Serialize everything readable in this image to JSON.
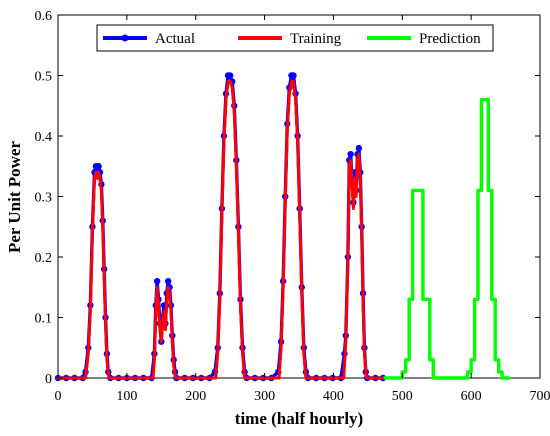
{
  "chart_data": {
    "type": "line",
    "title": "",
    "xlabel": "time (half hourly)",
    "ylabel": "Per Unit Power",
    "xlim": [
      0,
      700
    ],
    "ylim": [
      0,
      0.6
    ],
    "xticks": [
      "0",
      "100",
      "200",
      "300",
      "400",
      "500",
      "600",
      "700"
    ],
    "yticks": [
      "0",
      "0.1",
      "0.2",
      "0.3",
      "0.4",
      "0.5",
      "0.6"
    ],
    "grid": false,
    "legend": {
      "placement": "top",
      "orientation": "horizontal"
    },
    "series": [
      {
        "name": "Actual",
        "color": "#0000ff",
        "marker": "circle",
        "points": [
          [
            0,
            0
          ],
          [
            12,
            0
          ],
          [
            24,
            0
          ],
          [
            36,
            0
          ],
          [
            40,
            0.01
          ],
          [
            44,
            0.05
          ],
          [
            47,
            0.12
          ],
          [
            50,
            0.25
          ],
          [
            53,
            0.34
          ],
          [
            55,
            0.35
          ],
          [
            57,
            0.34
          ],
          [
            59,
            0.35
          ],
          [
            61,
            0.34
          ],
          [
            63,
            0.32
          ],
          [
            65,
            0.26
          ],
          [
            67,
            0.18
          ],
          [
            69,
            0.1
          ],
          [
            71,
            0.04
          ],
          [
            73,
            0.01
          ],
          [
            76,
            0
          ],
          [
            88,
            0
          ],
          [
            100,
            0
          ],
          [
            112,
            0
          ],
          [
            124,
            0
          ],
          [
            136,
            0
          ],
          [
            140,
            0.04
          ],
          [
            142,
            0.12
          ],
          [
            144,
            0.16
          ],
          [
            146,
            0.13
          ],
          [
            148,
            0.09
          ],
          [
            150,
            0.06
          ],
          [
            152,
            0.1
          ],
          [
            154,
            0.12
          ],
          [
            156,
            0.09
          ],
          [
            158,
            0.14
          ],
          [
            160,
            0.16
          ],
          [
            162,
            0.15
          ],
          [
            164,
            0.12
          ],
          [
            166,
            0.07
          ],
          [
            168,
            0.03
          ],
          [
            170,
            0.01
          ],
          [
            172,
            0
          ],
          [
            184,
            0
          ],
          [
            196,
            0
          ],
          [
            208,
            0
          ],
          [
            220,
            0
          ],
          [
            228,
            0.01
          ],
          [
            232,
            0.05
          ],
          [
            235,
            0.14
          ],
          [
            238,
            0.28
          ],
          [
            241,
            0.4
          ],
          [
            244,
            0.47
          ],
          [
            247,
            0.5
          ],
          [
            250,
            0.5
          ],
          [
            253,
            0.49
          ],
          [
            256,
            0.45
          ],
          [
            259,
            0.36
          ],
          [
            262,
            0.25
          ],
          [
            265,
            0.13
          ],
          [
            268,
            0.05
          ],
          [
            271,
            0.01
          ],
          [
            274,
            0
          ],
          [
            286,
            0
          ],
          [
            298,
            0
          ],
          [
            310,
            0
          ],
          [
            320,
            0.01
          ],
          [
            324,
            0.06
          ],
          [
            327,
            0.16
          ],
          [
            330,
            0.3
          ],
          [
            333,
            0.42
          ],
          [
            336,
            0.48
          ],
          [
            339,
            0.5
          ],
          [
            342,
            0.5
          ],
          [
            345,
            0.47
          ],
          [
            348,
            0.4
          ],
          [
            351,
            0.28
          ],
          [
            354,
            0.15
          ],
          [
            357,
            0.05
          ],
          [
            360,
            0.01
          ],
          [
            363,
            0
          ],
          [
            375,
            0
          ],
          [
            387,
            0
          ],
          [
            399,
            0
          ],
          [
            411,
            0
          ],
          [
            416,
            0.04
          ],
          [
            418,
            0.07
          ],
          [
            421,
            0.2
          ],
          [
            423,
            0.36
          ],
          [
            425,
            0.37
          ],
          [
            427,
            0.33
          ],
          [
            429,
            0.29
          ],
          [
            431,
            0.34
          ],
          [
            433,
            0.31
          ],
          [
            435,
            0.37
          ],
          [
            437,
            0.38
          ],
          [
            439,
            0.34
          ],
          [
            441,
            0.25
          ],
          [
            443,
            0.14
          ],
          [
            445,
            0.05
          ],
          [
            447,
            0.01
          ],
          [
            449,
            0
          ],
          [
            461,
            0
          ],
          [
            472,
            0
          ]
        ]
      },
      {
        "name": "Training",
        "color": "#ff0000",
        "points": [
          [
            0,
            0
          ],
          [
            40,
            0
          ],
          [
            44,
            0.04
          ],
          [
            47,
            0.11
          ],
          [
            50,
            0.24
          ],
          [
            53,
            0.33
          ],
          [
            55,
            0.34
          ],
          [
            57,
            0.33
          ],
          [
            59,
            0.34
          ],
          [
            61,
            0.33
          ],
          [
            63,
            0.31
          ],
          [
            65,
            0.25
          ],
          [
            67,
            0.17
          ],
          [
            69,
            0.09
          ],
          [
            71,
            0.03
          ],
          [
            74,
            0
          ],
          [
            138,
            0
          ],
          [
            140,
            0.03
          ],
          [
            142,
            0.11
          ],
          [
            144,
            0.15
          ],
          [
            146,
            0.12
          ],
          [
            148,
            0.08
          ],
          [
            150,
            0.06
          ],
          [
            152,
            0.09
          ],
          [
            154,
            0.11
          ],
          [
            156,
            0.08
          ],
          [
            158,
            0.13
          ],
          [
            160,
            0.15
          ],
          [
            162,
            0.14
          ],
          [
            164,
            0.11
          ],
          [
            166,
            0.06
          ],
          [
            168,
            0.02
          ],
          [
            171,
            0
          ],
          [
            229,
            0
          ],
          [
            232,
            0.04
          ],
          [
            235,
            0.13
          ],
          [
            238,
            0.27
          ],
          [
            241,
            0.39
          ],
          [
            244,
            0.46
          ],
          [
            247,
            0.49
          ],
          [
            250,
            0.49
          ],
          [
            253,
            0.48
          ],
          [
            256,
            0.44
          ],
          [
            259,
            0.35
          ],
          [
            262,
            0.24
          ],
          [
            265,
            0.12
          ],
          [
            268,
            0.04
          ],
          [
            271,
            0
          ],
          [
            321,
            0
          ],
          [
            324,
            0.05
          ],
          [
            327,
            0.15
          ],
          [
            330,
            0.29
          ],
          [
            333,
            0.41
          ],
          [
            336,
            0.47
          ],
          [
            339,
            0.49
          ],
          [
            342,
            0.49
          ],
          [
            345,
            0.46
          ],
          [
            348,
            0.39
          ],
          [
            351,
            0.27
          ],
          [
            354,
            0.14
          ],
          [
            357,
            0.04
          ],
          [
            360,
            0
          ],
          [
            415,
            0
          ],
          [
            418,
            0.06
          ],
          [
            421,
            0.19
          ],
          [
            423,
            0.35
          ],
          [
            425,
            0.36
          ],
          [
            427,
            0.32
          ],
          [
            429,
            0.28
          ],
          [
            431,
            0.33
          ],
          [
            433,
            0.3
          ],
          [
            435,
            0.36
          ],
          [
            437,
            0.37
          ],
          [
            439,
            0.33
          ],
          [
            441,
            0.24
          ],
          [
            443,
            0.13
          ],
          [
            445,
            0.04
          ],
          [
            448,
            0
          ],
          [
            472,
            0
          ]
        ]
      },
      {
        "name": "Prediction",
        "color": "#00ff00",
        "step": true,
        "points": [
          [
            475,
            0
          ],
          [
            500,
            0
          ],
          [
            500,
            0.01
          ],
          [
            505,
            0.01
          ],
          [
            505,
            0.03
          ],
          [
            510,
            0.03
          ],
          [
            510,
            0.13
          ],
          [
            515,
            0.13
          ],
          [
            515,
            0.31
          ],
          [
            530,
            0.31
          ],
          [
            530,
            0.13
          ],
          [
            540,
            0.13
          ],
          [
            540,
            0.03
          ],
          [
            545,
            0.03
          ],
          [
            545,
            0
          ],
          [
            595,
            0
          ],
          [
            595,
            0.01
          ],
          [
            600,
            0.01
          ],
          [
            600,
            0.03
          ],
          [
            605,
            0.03
          ],
          [
            605,
            0.13
          ],
          [
            610,
            0.13
          ],
          [
            610,
            0.31
          ],
          [
            615,
            0.31
          ],
          [
            615,
            0.46
          ],
          [
            625,
            0.46
          ],
          [
            625,
            0.31
          ],
          [
            630,
            0.31
          ],
          [
            630,
            0.13
          ],
          [
            635,
            0.13
          ],
          [
            635,
            0.03
          ],
          [
            640,
            0.03
          ],
          [
            640,
            0.01
          ],
          [
            645,
            0.01
          ],
          [
            645,
            0
          ],
          [
            655,
            0
          ]
        ]
      }
    ]
  }
}
